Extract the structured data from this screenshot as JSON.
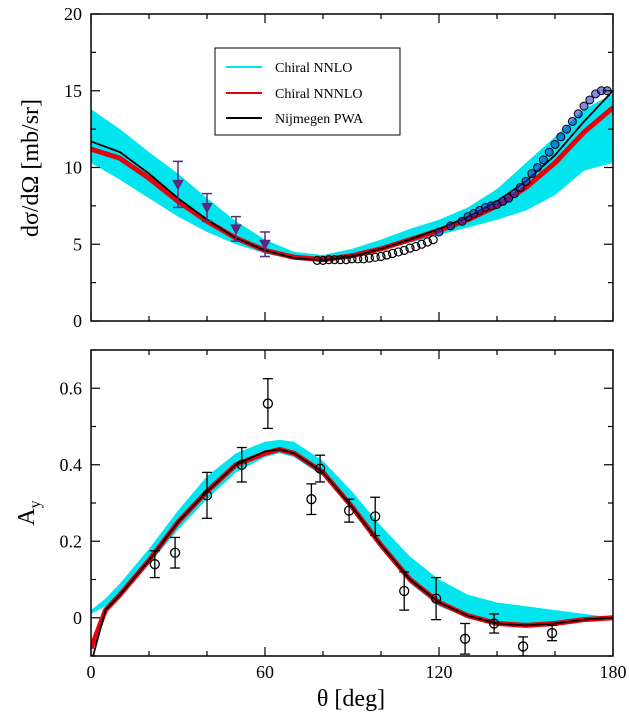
{
  "chart_data": [
    {
      "type": "line",
      "ylabel": "dσ/dΩ  [mb/sr]",
      "xlim": [
        0,
        180
      ],
      "ylim": [
        0,
        20
      ],
      "xticks": [
        0,
        60,
        120,
        180
      ],
      "yticks": [
        0,
        5,
        10,
        15,
        20
      ],
      "legend": {
        "placement": "top-center",
        "entries": [
          "Chiral NNLO",
          "Chiral NNNLO",
          "Nijmegen PWA"
        ]
      },
      "x": [
        0,
        10,
        20,
        30,
        40,
        50,
        60,
        70,
        80,
        90,
        100,
        110,
        120,
        130,
        140,
        150,
        160,
        170,
        180
      ],
      "series": [
        {
          "name": "Chiral NNLO",
          "kind": "band",
          "color": "#00e5ee",
          "lower": [
            10.3,
            9.2,
            8.0,
            6.8,
            5.8,
            5.0,
            4.4,
            4.0,
            3.9,
            4.1,
            4.6,
            5.1,
            5.6,
            6.1,
            6.6,
            7.2,
            8.2,
            9.8,
            10.3
          ],
          "upper": [
            13.8,
            12.5,
            11.0,
            9.6,
            8.0,
            6.5,
            5.3,
            4.5,
            4.3,
            4.7,
            5.3,
            6.0,
            6.6,
            7.4,
            8.6,
            10.3,
            12.0,
            13.8,
            14.8
          ]
        },
        {
          "name": "Chiral NNNLO",
          "kind": "thick-line",
          "color": "#e8000b",
          "values": [
            11.2,
            10.6,
            9.3,
            7.8,
            6.5,
            5.4,
            4.6,
            4.15,
            4.0,
            4.25,
            4.7,
            5.3,
            5.9,
            6.6,
            7.5,
            8.7,
            10.3,
            12.3,
            13.9
          ]
        },
        {
          "name": "Nijmegen PWA",
          "kind": "line",
          "color": "#000000",
          "values": [
            11.7,
            11.0,
            9.6,
            8.0,
            6.6,
            5.4,
            4.6,
            4.1,
            3.95,
            4.2,
            4.7,
            5.3,
            6.0,
            6.8,
            7.8,
            9.1,
            10.8,
            13.0,
            15.0
          ]
        }
      ],
      "data_points": [
        {
          "marker": "triangle-down",
          "color": "#5a2a80",
          "x": 30,
          "y": 8.9,
          "err": 1.5
        },
        {
          "marker": "triangle-down",
          "color": "#5a2a80",
          "x": 40,
          "y": 7.4,
          "err": 0.9
        },
        {
          "marker": "triangle-down",
          "color": "#5a2a80",
          "x": 50,
          "y": 6.0,
          "err": 0.8
        },
        {
          "marker": "triangle-down",
          "color": "#5a2a80",
          "x": 60,
          "y": 5.0,
          "err": 0.8
        }
      ],
      "open_circles": {
        "color": "#000000",
        "x": [
          78,
          80,
          82,
          84,
          86,
          88,
          90,
          92,
          94,
          96,
          98,
          100,
          102,
          104,
          106,
          108,
          110,
          112,
          114,
          116,
          118
        ],
        "y": [
          3.95,
          3.95,
          4.0,
          4.0,
          4.0,
          4.0,
          4.05,
          4.05,
          4.05,
          4.1,
          4.15,
          4.2,
          4.3,
          4.4,
          4.5,
          4.6,
          4.75,
          4.85,
          5.0,
          5.15,
          5.3
        ]
      },
      "blue_circles": {
        "color": "#1a2ccc",
        "x": [
          120,
          124,
          128,
          130,
          132,
          134,
          136,
          138,
          140,
          142,
          144,
          146,
          148,
          150,
          152,
          154,
          156,
          158,
          160,
          162,
          164,
          166,
          168,
          170,
          172,
          174,
          176,
          178
        ],
        "y": [
          5.8,
          6.2,
          6.5,
          6.8,
          7.0,
          7.2,
          7.4,
          7.5,
          7.6,
          7.8,
          8.0,
          8.3,
          8.7,
          9.1,
          9.6,
          10.0,
          10.5,
          11.0,
          11.5,
          12.0,
          12.5,
          13.0,
          13.5,
          14.0,
          14.4,
          14.8,
          15.0,
          15.0
        ]
      }
    },
    {
      "type": "line",
      "xlabel": "θ  [deg]",
      "ylabel": "A",
      "ylabel_sub": "y",
      "xlim": [
        0,
        180
      ],
      "ylim": [
        -0.1,
        0.7
      ],
      "xticks": [
        0,
        60,
        120,
        180
      ],
      "yticks": [
        0,
        0.2,
        0.4,
        0.6
      ],
      "ytick_labels": [
        "0",
        "0.2",
        "0.4",
        "0.6"
      ],
      "x": [
        0,
        5,
        10,
        20,
        30,
        40,
        50,
        60,
        65,
        70,
        80,
        90,
        100,
        110,
        120,
        130,
        140,
        150,
        160,
        170,
        180
      ],
      "series": [
        {
          "name": "Chiral NNLO",
          "kind": "band",
          "color": "#00e5ee",
          "lower": [
            0.01,
            0.03,
            0.06,
            0.14,
            0.23,
            0.31,
            0.38,
            0.42,
            0.43,
            0.42,
            0.37,
            0.28,
            0.18,
            0.09,
            0.03,
            0.0,
            -0.015,
            -0.02,
            -0.015,
            -0.005,
            0.0
          ],
          "upper": [
            0.02,
            0.05,
            0.09,
            0.18,
            0.28,
            0.37,
            0.43,
            0.46,
            0.465,
            0.46,
            0.41,
            0.33,
            0.24,
            0.16,
            0.1,
            0.06,
            0.04,
            0.03,
            0.02,
            0.01,
            0.0
          ]
        },
        {
          "name": "Chiral NNNLO",
          "kind": "thick-line",
          "color": "#e8000b",
          "values": [
            -0.08,
            0.02,
            0.06,
            0.15,
            0.25,
            0.33,
            0.4,
            0.43,
            0.44,
            0.43,
            0.38,
            0.29,
            0.19,
            0.1,
            0.04,
            0.005,
            -0.015,
            -0.02,
            -0.015,
            -0.005,
            0.0
          ]
        },
        {
          "name": "Nijmegen PWA",
          "kind": "line",
          "color": "#000000",
          "values": [
            -0.12,
            0.02,
            0.06,
            0.15,
            0.25,
            0.33,
            0.4,
            0.435,
            0.44,
            0.43,
            0.38,
            0.29,
            0.19,
            0.1,
            0.04,
            0.005,
            -0.015,
            -0.02,
            -0.015,
            -0.005,
            0.0
          ]
        }
      ],
      "open_circles": {
        "color": "#000000",
        "points": [
          {
            "x": 22,
            "y": 0.14,
            "err": 0.035
          },
          {
            "x": 29,
            "y": 0.17,
            "err": 0.04
          },
          {
            "x": 40,
            "y": 0.32,
            "err": 0.06
          },
          {
            "x": 52,
            "y": 0.4,
            "err": 0.045
          },
          {
            "x": 61,
            "y": 0.56,
            "err": 0.065
          },
          {
            "x": 76,
            "y": 0.31,
            "err": 0.04
          },
          {
            "x": 79,
            "y": 0.39,
            "err": 0.035
          },
          {
            "x": 89,
            "y": 0.28,
            "err": 0.03
          },
          {
            "x": 98,
            "y": 0.265,
            "err": 0.05
          },
          {
            "x": 108,
            "y": 0.07,
            "err": 0.05
          },
          {
            "x": 119,
            "y": 0.05,
            "err": 0.055
          },
          {
            "x": 129,
            "y": -0.055,
            "err": 0.04
          },
          {
            "x": 139,
            "y": -0.015,
            "err": 0.025
          },
          {
            "x": 149,
            "y": -0.075,
            "err": 0.025
          },
          {
            "x": 159,
            "y": -0.04,
            "err": 0.02
          }
        ]
      }
    }
  ]
}
